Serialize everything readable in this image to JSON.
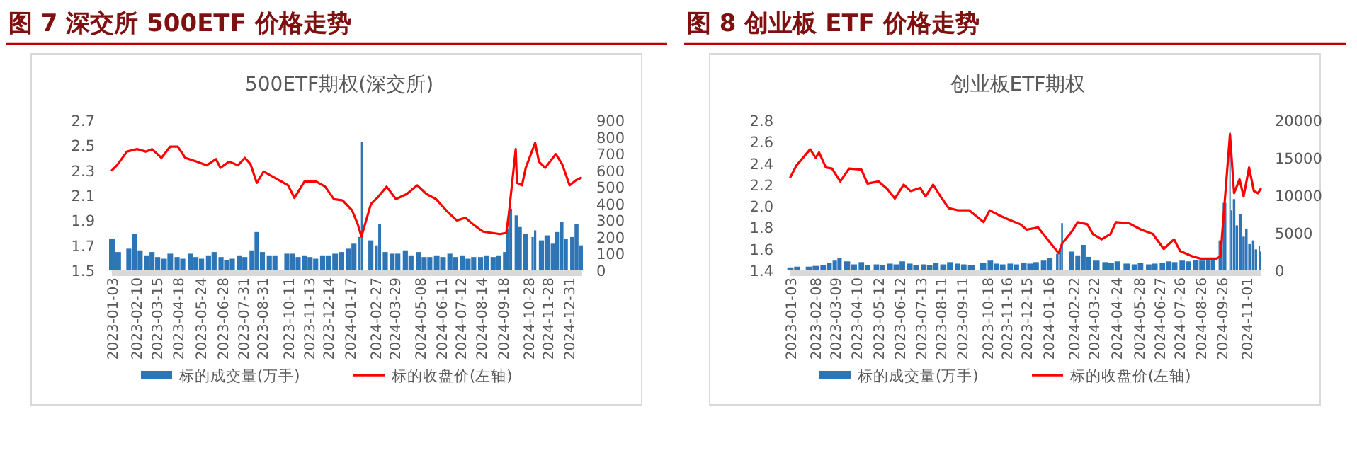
{
  "chart_data": [
    {
      "type": "line",
      "title": "图 7 深交所 500ETF 价格走势",
      "subtitle": "500ETF期权(深交所)",
      "legend": "bottom",
      "xlim": [
        "2023-01-03",
        "2025-01-22"
      ],
      "xticks": [
        "2023-01-03",
        "2023-02-10",
        "2023-03-15",
        "2023-04-18",
        "2023-05-24",
        "2023-06-28",
        "2023-07-31",
        "2023-08-31",
        "2023-10-11",
        "2023-11-13",
        "2023-12-14",
        "2024-01-17",
        "2024-02-27",
        "2024-03-29",
        "2024-05-08",
        "2024-06-11",
        "2024-07-12",
        "2024-08-14",
        "2024-09-18",
        "2024-10-28",
        "2024-11-28",
        "2024-12-31"
      ],
      "ylim": [
        1.5,
        2.7
      ],
      "yticks": [
        1.5,
        1.7,
        1.9,
        2.1,
        2.3,
        2.5,
        2.7
      ],
      "y2lim": [
        0,
        900
      ],
      "y2ticks": [
        0,
        100,
        200,
        300,
        400,
        500,
        600,
        700,
        800,
        900
      ],
      "series": [
        {
          "name": "标的成交量(万手)",
          "type": "bar",
          "axis": "y2",
          "color": "#2e75b6",
          "x": [
            "2023-01-03",
            "2023-01-13",
            "2023-01-30",
            "2023-02-08",
            "2023-02-17",
            "2023-02-27",
            "2023-03-08",
            "2023-03-17",
            "2023-03-27",
            "2023-04-06",
            "2023-04-17",
            "2023-04-26",
            "2023-05-08",
            "2023-05-17",
            "2023-05-26",
            "2023-06-06",
            "2023-06-15",
            "2023-06-26",
            "2023-07-05",
            "2023-07-14",
            "2023-07-25",
            "2023-08-03",
            "2023-08-14",
            "2023-08-22",
            "2023-08-31",
            "2023-09-11",
            "2023-09-20",
            "2023-10-09",
            "2023-10-18",
            "2023-10-27",
            "2023-11-06",
            "2023-11-15",
            "2023-11-24",
            "2023-12-05",
            "2023-12-14",
            "2023-12-25",
            "2024-01-04",
            "2024-01-15",
            "2024-01-24",
            "2024-02-02",
            "2024-02-06",
            "2024-02-20",
            "2024-02-29",
            "2024-03-05",
            "2024-03-14",
            "2024-03-25",
            "2024-04-03",
            "2024-04-15",
            "2024-04-24",
            "2024-05-06",
            "2024-05-15",
            "2024-05-24",
            "2024-06-04",
            "2024-06-14",
            "2024-06-25",
            "2024-07-04",
            "2024-07-15",
            "2024-07-24",
            "2024-08-02",
            "2024-08-13",
            "2024-08-22",
            "2024-09-02",
            "2024-09-11",
            "2024-09-20",
            "2024-09-25",
            "2024-09-30",
            "2024-10-09",
            "2024-10-15",
            "2024-10-24",
            "2024-11-04",
            "2024-11-08",
            "2024-11-18",
            "2024-11-27",
            "2024-12-06",
            "2024-12-13",
            "2024-12-20",
            "2024-12-27",
            "2025-01-06",
            "2025-01-13",
            "2025-01-20"
          ],
          "values": [
            190,
            110,
            130,
            220,
            120,
            90,
            110,
            80,
            70,
            100,
            80,
            70,
            100,
            80,
            70,
            90,
            110,
            80,
            60,
            70,
            90,
            80,
            120,
            230,
            110,
            90,
            90,
            100,
            100,
            80,
            90,
            80,
            70,
            90,
            90,
            100,
            110,
            130,
            160,
            200,
            770,
            180,
            150,
            280,
            110,
            100,
            100,
            120,
            90,
            110,
            80,
            80,
            90,
            80,
            100,
            80,
            90,
            70,
            80,
            80,
            90,
            80,
            90,
            110,
            250,
            370,
            330,
            260,
            220,
            200,
            240,
            180,
            210,
            160,
            230,
            290,
            190,
            200,
            280,
            150
          ]
        },
        {
          "name": "标的收盘价(左轴)",
          "color": "#ff0000",
          "x": [
            "2023-01-03",
            "2023-01-11",
            "2023-01-27",
            "2023-02-12",
            "2023-02-26",
            "2023-03-08",
            "2023-03-23",
            "2023-04-06",
            "2023-04-18",
            "2023-04-30",
            "2023-05-18",
            "2023-06-03",
            "2023-06-18",
            "2023-06-25",
            "2023-07-09",
            "2023-07-23",
            "2023-08-03",
            "2023-08-12",
            "2023-08-22",
            "2023-09-02",
            "2023-09-27",
            "2023-10-11",
            "2023-10-21",
            "2023-11-06",
            "2023-11-25",
            "2023-12-09",
            "2023-12-23",
            "2024-01-06",
            "2024-01-21",
            "2024-01-30",
            "2024-02-05",
            "2024-02-20",
            "2024-03-03",
            "2024-03-16",
            "2024-03-31",
            "2024-04-17",
            "2024-05-04",
            "2024-05-19",
            "2024-06-03",
            "2024-06-23",
            "2024-07-06",
            "2024-07-20",
            "2024-08-03",
            "2024-08-17",
            "2024-09-13",
            "2024-09-23",
            "2024-09-27",
            "2024-10-08",
            "2024-10-10",
            "2024-10-18",
            "2024-10-24",
            "2024-11-08",
            "2024-11-14",
            "2024-11-24",
            "2024-12-11",
            "2024-12-21",
            "2025-01-02",
            "2025-01-12",
            "2025-01-20"
          ],
          "values": [
            2.3,
            2.34,
            2.45,
            2.47,
            2.45,
            2.47,
            2.4,
            2.49,
            2.49,
            2.4,
            2.37,
            2.34,
            2.39,
            2.32,
            2.37,
            2.34,
            2.4,
            2.35,
            2.2,
            2.29,
            2.22,
            2.18,
            2.08,
            2.21,
            2.21,
            2.17,
            2.07,
            2.06,
            1.98,
            1.87,
            1.77,
            2.03,
            2.09,
            2.17,
            2.07,
            2.11,
            2.18,
            2.11,
            2.07,
            1.96,
            1.9,
            1.92,
            1.86,
            1.81,
            1.79,
            1.8,
            1.95,
            2.47,
            2.2,
            2.18,
            2.32,
            2.52,
            2.37,
            2.32,
            2.43,
            2.35,
            2.18,
            2.22,
            2.24
          ]
        }
      ]
    },
    {
      "type": "line",
      "title": "图 8 创业板 ETF 价格走势",
      "subtitle": "创业板ETF期权",
      "legend": "bottom",
      "xlim": [
        "2023-01-03",
        "2024-11-22"
      ],
      "xticks": [
        "2023-01-03",
        "2023-02-08",
        "2023-03-09",
        "2023-04-10",
        "2023-05-12",
        "2023-06-12",
        "2023-07-13",
        "2023-08-11",
        "2023-09-11",
        "2023-10-18",
        "2023-11-16",
        "2023-12-15",
        "2024-01-16",
        "2024-02-22",
        "2024-03-22",
        "2024-04-24",
        "2024-05-28",
        "2024-06-27",
        "2024-07-26",
        "2024-08-26",
        "2024-09-26",
        "2024-11-01"
      ],
      "ylim": [
        1.4,
        2.8
      ],
      "yticks": [
        1.4,
        1.6,
        1.8,
        {
          "value": 2,
          "label": "2.0"
        },
        2.2,
        2.4,
        2.6,
        2.8
      ],
      "y2lim": [
        0,
        20000
      ],
      "y2ticks": [
        0,
        5000,
        10000,
        15000,
        20000
      ],
      "series": [
        {
          "name": "标的成交量(万手)",
          "type": "bar",
          "axis": "y2",
          "color": "#2e75b6",
          "x": [
            "2023-01-03",
            "2023-01-13",
            "2023-01-30",
            "2023-02-09",
            "2023-02-20",
            "2023-03-01",
            "2023-03-09",
            "2023-03-16",
            "2023-03-27",
            "2023-04-06",
            "2023-04-17",
            "2023-04-26",
            "2023-05-09",
            "2023-05-18",
            "2023-05-29",
            "2023-06-07",
            "2023-06-16",
            "2023-06-27",
            "2023-07-06",
            "2023-07-17",
            "2023-07-26",
            "2023-08-04",
            "2023-08-15",
            "2023-08-25",
            "2023-09-05",
            "2023-09-14",
            "2023-09-25",
            "2023-10-12",
            "2023-10-23",
            "2023-11-01",
            "2023-11-10",
            "2023-11-21",
            "2023-11-30",
            "2023-12-11",
            "2023-12-20",
            "2023-12-29",
            "2024-01-09",
            "2024-01-18",
            "2024-01-29",
            "2024-02-02",
            "2024-02-05",
            "2024-02-19",
            "2024-02-28",
            "2024-03-07",
            "2024-03-15",
            "2024-03-26",
            "2024-04-08",
            "2024-04-17",
            "2024-04-26",
            "2024-05-10",
            "2024-05-21",
            "2024-05-30",
            "2024-06-11",
            "2024-06-20",
            "2024-07-01",
            "2024-07-10",
            "2024-07-19",
            "2024-07-30",
            "2024-08-08",
            "2024-08-19",
            "2024-08-28",
            "2024-09-06",
            "2024-09-13",
            "2024-09-24",
            "2024-09-30",
            "2024-10-08",
            "2024-10-10",
            "2024-10-14",
            "2024-10-18",
            "2024-10-23",
            "2024-10-28",
            "2024-11-01",
            "2024-11-06",
            "2024-11-11",
            "2024-11-15",
            "2024-11-20",
            "2024-11-22"
          ],
          "values": [
            400,
            500,
            500,
            600,
            700,
            1000,
            1300,
            1700,
            1200,
            800,
            1100,
            700,
            800,
            700,
            900,
            800,
            1200,
            900,
            700,
            800,
            700,
            1000,
            800,
            1100,
            900,
            800,
            700,
            1000,
            1300,
            900,
            800,
            900,
            800,
            1000,
            900,
            1100,
            1300,
            1600,
            2200,
            2800,
            6300,
            2500,
            2000,
            3400,
            1800,
            1300,
            1100,
            1000,
            1200,
            900,
            800,
            1000,
            800,
            900,
            1000,
            1200,
            1100,
            1300,
            1200,
            1400,
            1300,
            1500,
            1600,
            4000,
            9000,
            18400,
            8000,
            9500,
            6000,
            7500,
            4500,
            5500,
            3500,
            4000,
            2800,
            3200,
            2500
          ]
        },
        {
          "name": "标的收盘价(左轴)",
          "color": "#ff0000",
          "x": [
            "2023-01-03",
            "2023-01-12",
            "2023-02-01",
            "2023-02-09",
            "2023-02-14",
            "2023-02-24",
            "2023-03-05",
            "2023-03-17",
            "2023-03-30",
            "2023-04-17",
            "2023-04-26",
            "2023-05-12",
            "2023-05-25",
            "2023-06-05",
            "2023-06-18",
            "2023-06-28",
            "2023-07-12",
            "2023-07-20",
            "2023-07-31",
            "2023-08-13",
            "2023-08-23",
            "2023-09-06",
            "2023-09-22",
            "2023-10-13",
            "2023-10-22",
            "2023-11-06",
            "2023-11-20",
            "2023-12-06",
            "2023-12-15",
            "2024-01-01",
            "2024-01-12",
            "2024-01-31",
            "2024-02-05",
            "2024-02-19",
            "2024-02-28",
            "2024-03-13",
            "2024-03-21",
            "2024-04-03",
            "2024-04-16",
            "2024-04-24",
            "2024-05-13",
            "2024-05-31",
            "2024-06-17",
            "2024-07-03",
            "2024-07-18",
            "2024-07-27",
            "2024-08-14",
            "2024-08-26",
            "2024-09-18",
            "2024-09-24",
            "2024-10-08",
            "2024-10-14",
            "2024-10-22",
            "2024-10-28",
            "2024-11-05",
            "2024-11-12",
            "2024-11-18",
            "2024-11-22"
          ],
          "values": [
            2.27,
            2.38,
            2.53,
            2.45,
            2.5,
            2.36,
            2.35,
            2.23,
            2.35,
            2.34,
            2.21,
            2.23,
            2.16,
            2.07,
            2.2,
            2.14,
            2.17,
            2.09,
            2.2,
            2.07,
            1.98,
            1.96,
            1.96,
            1.85,
            1.96,
            1.91,
            1.87,
            1.83,
            1.78,
            1.8,
            1.71,
            1.56,
            1.65,
            1.76,
            1.85,
            1.83,
            1.74,
            1.69,
            1.74,
            1.85,
            1.84,
            1.78,
            1.74,
            1.6,
            1.69,
            1.58,
            1.53,
            1.51,
            1.51,
            1.53,
            2.67,
            2.12,
            2.25,
            2.09,
            2.36,
            2.14,
            2.12,
            2.16
          ]
        }
      ]
    }
  ]
}
